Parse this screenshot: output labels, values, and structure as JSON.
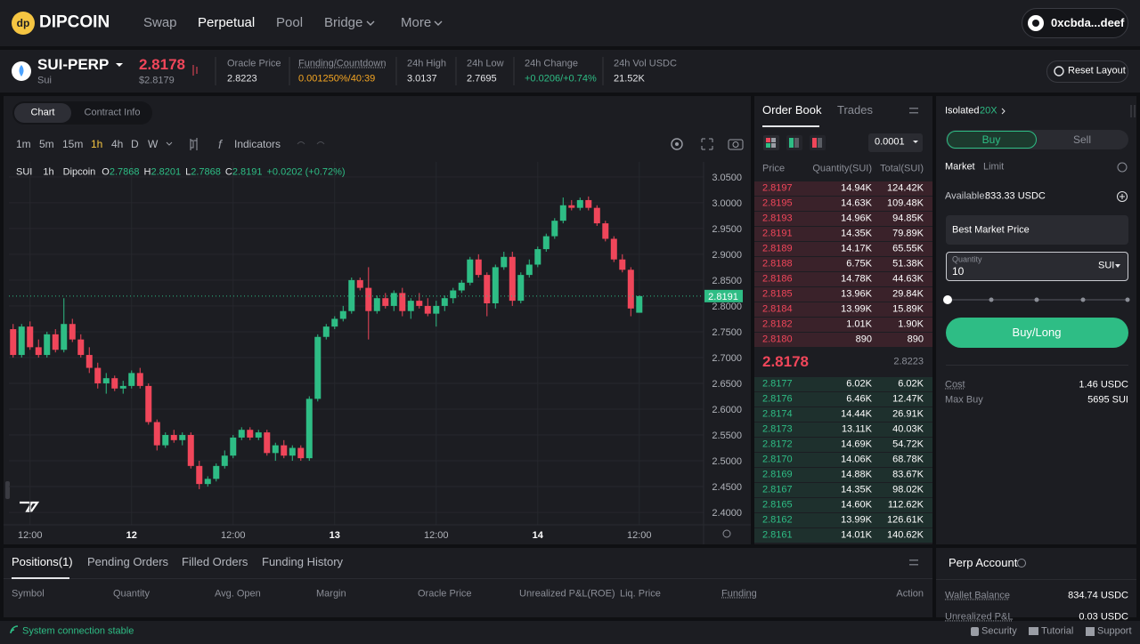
{
  "nav": {
    "logo": "DIPCOIN",
    "links": [
      "Swap",
      "Perpetual",
      "Pool",
      "Bridge",
      "More"
    ],
    "wallet": "0xcbda...deef"
  },
  "ticker": {
    "symbol": "SUI-PERP",
    "name": "Sui",
    "price": "2.8178",
    "price_usd": "$2.8179",
    "stats": [
      {
        "label": "Oracle Price",
        "value": "2.8223"
      },
      {
        "label": "Funding/Countdown",
        "value": "0.001250%/40:39"
      },
      {
        "label": "24h High",
        "value": "3.0137"
      },
      {
        "label": "24h Low",
        "value": "2.7695"
      },
      {
        "label": "24h Change",
        "value": "+0.0206/+0.74%"
      },
      {
        "label": "24h Vol USDC",
        "value": "21.52K"
      }
    ],
    "reset": "Reset Layout"
  },
  "chart_panel": {
    "tabs": [
      "Chart",
      "Contract Info"
    ],
    "intervals": [
      "1m",
      "5m",
      "15m",
      "1h",
      "4h",
      "D",
      "W"
    ],
    "indicators": "Indicators",
    "legend": {
      "interval": "1h",
      "source": "Dipcoin",
      "ohlc": [
        {
          "key": "O",
          "value": "2.7868"
        },
        {
          "key": "H",
          "value": "2.8201"
        },
        {
          "key": "L",
          "value": "2.7868"
        },
        {
          "key": "C",
          "value": "2.8191"
        }
      ],
      "change": "+0.0202 (+0.72%)"
    }
  },
  "chart_data": {
    "type": "candlestick",
    "up_color": "#2ebd85",
    "down_color": "#f0465a",
    "grid": true,
    "x": [
      10,
      11,
      12,
      13,
      14,
      15,
      16,
      17,
      18,
      19,
      20,
      21,
      22,
      23,
      24,
      25,
      26,
      27,
      28,
      29,
      30,
      31,
      32,
      33,
      34,
      35,
      36,
      37,
      38,
      39,
      40,
      41,
      42,
      43,
      44,
      45,
      46,
      47,
      48,
      49,
      50,
      51,
      52,
      53,
      54,
      55,
      56,
      57,
      58,
      59,
      60,
      61,
      62,
      63,
      64,
      65,
      66,
      67,
      68,
      69,
      70,
      71,
      72,
      73,
      74,
      75,
      76,
      77,
      78,
      79,
      80,
      81,
      82,
      83,
      84
    ],
    "series": [
      {
        "name": "SUI",
        "open": [
          2.755,
          2.705,
          2.76,
          2.72,
          2.705,
          2.745,
          2.715,
          2.765,
          2.735,
          2.705,
          2.68,
          2.65,
          2.66,
          2.64,
          2.645,
          2.67,
          2.645,
          2.575,
          2.53,
          2.55,
          2.54,
          2.55,
          2.49,
          2.455,
          2.465,
          2.49,
          2.51,
          2.545,
          2.56,
          2.545,
          2.555,
          2.515,
          2.53,
          2.51,
          2.525,
          2.505,
          2.62,
          2.74,
          2.76,
          2.775,
          2.79,
          2.85,
          2.835,
          2.79,
          2.815,
          2.8,
          2.825,
          2.79,
          2.81,
          2.8,
          2.785,
          2.8,
          2.815,
          2.83,
          2.845,
          2.89,
          2.86,
          2.805,
          2.875,
          2.895,
          2.81,
          2.86,
          2.88,
          2.91,
          2.935,
          2.965,
          2.995,
          2.99,
          3.005,
          2.99,
          2.96,
          2.93,
          2.89,
          2.87,
          2.7868
        ],
        "high": [
          2.765,
          2.765,
          2.77,
          2.735,
          2.75,
          2.755,
          2.815,
          2.775,
          2.745,
          2.72,
          2.69,
          2.67,
          2.665,
          2.655,
          2.675,
          2.68,
          2.65,
          2.58,
          2.555,
          2.56,
          2.555,
          2.555,
          2.5,
          2.47,
          2.495,
          2.52,
          2.55,
          2.565,
          2.565,
          2.56,
          2.56,
          2.535,
          2.54,
          2.53,
          2.53,
          2.625,
          2.745,
          2.765,
          2.78,
          2.8,
          2.855,
          2.855,
          2.875,
          2.82,
          2.825,
          2.83,
          2.835,
          2.815,
          2.825,
          2.815,
          2.81,
          2.82,
          2.835,
          2.85,
          2.895,
          2.9,
          2.865,
          2.88,
          2.905,
          2.905,
          2.865,
          2.89,
          2.915,
          2.94,
          2.97,
          3.01,
          3.005,
          3.01,
          3.012,
          2.995,
          2.965,
          2.935,
          2.9,
          2.875,
          2.8201
        ],
        "low": [
          2.7,
          2.7,
          2.715,
          2.7,
          2.7,
          2.71,
          2.71,
          2.73,
          2.7,
          2.67,
          2.64,
          2.63,
          2.635,
          2.63,
          2.64,
          2.64,
          2.57,
          2.52,
          2.525,
          2.535,
          2.53,
          2.485,
          2.445,
          2.45,
          2.46,
          2.485,
          2.505,
          2.54,
          2.54,
          2.54,
          2.51,
          2.5,
          2.505,
          2.5,
          2.5,
          2.5,
          2.615,
          2.735,
          2.755,
          2.77,
          2.785,
          2.83,
          2.735,
          2.785,
          2.795,
          2.79,
          2.78,
          2.775,
          2.795,
          2.78,
          2.76,
          2.79,
          2.805,
          2.825,
          2.84,
          2.855,
          2.78,
          2.795,
          2.87,
          2.8,
          2.805,
          2.855,
          2.875,
          2.905,
          2.93,
          2.96,
          2.985,
          2.985,
          2.985,
          2.955,
          2.925,
          2.885,
          2.865,
          2.78,
          2.7868
        ],
        "close": [
          2.705,
          2.76,
          2.72,
          2.705,
          2.745,
          2.715,
          2.765,
          2.735,
          2.705,
          2.68,
          2.65,
          2.66,
          2.64,
          2.645,
          2.67,
          2.645,
          2.575,
          2.53,
          2.55,
          2.54,
          2.55,
          2.49,
          2.455,
          2.465,
          2.49,
          2.51,
          2.545,
          2.56,
          2.545,
          2.555,
          2.515,
          2.53,
          2.51,
          2.525,
          2.505,
          2.62,
          2.74,
          2.76,
          2.775,
          2.79,
          2.85,
          2.835,
          2.79,
          2.815,
          2.8,
          2.825,
          2.79,
          2.81,
          2.8,
          2.785,
          2.8,
          2.815,
          2.83,
          2.845,
          2.89,
          2.86,
          2.805,
          2.875,
          2.895,
          2.81,
          2.86,
          2.88,
          2.91,
          2.935,
          2.965,
          2.995,
          2.99,
          3.005,
          2.99,
          2.96,
          2.93,
          2.89,
          2.87,
          2.795,
          2.8191
        ]
      }
    ],
    "xlim": [
      9.5,
      91.6
    ],
    "xticks": [
      {
        "value": 12,
        "label": "12:00"
      },
      {
        "value": 24,
        "label": "12"
      },
      {
        "value": 36,
        "label": "12:00"
      },
      {
        "value": 48,
        "label": "13"
      },
      {
        "value": 60,
        "label": "12:00"
      },
      {
        "value": 72,
        "label": "14"
      },
      {
        "value": 84,
        "label": "12:00"
      }
    ],
    "ylim": [
      2.376,
      3.079
    ],
    "yticks": [
      {
        "value": 2.4,
        "label": "2.4000"
      },
      {
        "value": 2.45,
        "label": "2.4500"
      },
      {
        "value": 2.5,
        "label": "2.5000"
      },
      {
        "value": 2.55,
        "label": "2.5500"
      },
      {
        "value": 2.6,
        "label": "2.6000"
      },
      {
        "value": 2.65,
        "label": "2.6500"
      },
      {
        "value": 2.7,
        "label": "2.7000"
      },
      {
        "value": 2.75,
        "label": "2.7500"
      },
      {
        "value": 2.8,
        "label": "2.8000"
      },
      {
        "value": 2.85,
        "label": "2.8500"
      },
      {
        "value": 2.9,
        "label": "2.9000"
      },
      {
        "value": 2.95,
        "label": "2.9500"
      },
      {
        "value": 3.0,
        "label": "3.0000"
      },
      {
        "value": 3.05,
        "label": "3.0500"
      }
    ],
    "last_price": 2.8191
  },
  "order_book": {
    "tabs": [
      "Order Book",
      "Trades"
    ],
    "step": "0.0001",
    "headers": [
      "Price",
      "Quantity(SUI)",
      "Total(SUI)"
    ],
    "asks": [
      [
        "2.8197",
        "14.94K",
        "124.42K"
      ],
      [
        "2.8195",
        "14.63K",
        "109.48K"
      ],
      [
        "2.8193",
        "14.96K",
        "94.85K"
      ],
      [
        "2.8191",
        "14.35K",
        "79.89K"
      ],
      [
        "2.8189",
        "14.17K",
        "65.55K"
      ],
      [
        "2.8188",
        "6.75K",
        "51.38K"
      ],
      [
        "2.8186",
        "14.78K",
        "44.63K"
      ],
      [
        "2.8185",
        "13.96K",
        "29.84K"
      ],
      [
        "2.8184",
        "13.99K",
        "15.89K"
      ],
      [
        "2.8182",
        "1.01K",
        "1.90K"
      ],
      [
        "2.8180",
        "890",
        "890"
      ]
    ],
    "mid_price": "2.8178",
    "mid_oracle": "2.8223",
    "bids": [
      [
        "2.8177",
        "6.02K",
        "6.02K"
      ],
      [
        "2.8176",
        "6.46K",
        "12.47K"
      ],
      [
        "2.8174",
        "14.44K",
        "26.91K"
      ],
      [
        "2.8173",
        "13.11K",
        "40.03K"
      ],
      [
        "2.8172",
        "14.69K",
        "54.72K"
      ],
      [
        "2.8170",
        "14.06K",
        "68.78K"
      ],
      [
        "2.8169",
        "14.88K",
        "83.67K"
      ],
      [
        "2.8167",
        "14.35K",
        "98.02K"
      ],
      [
        "2.8165",
        "14.60K",
        "112.62K"
      ],
      [
        "2.8162",
        "13.99K",
        "126.61K"
      ],
      [
        "2.8161",
        "14.01K",
        "140.62K"
      ]
    ]
  },
  "trade": {
    "margin_mode": "Isolated",
    "leverage": "20X",
    "sides": [
      "Buy",
      "Sell"
    ],
    "order_types": [
      "Market",
      "Limit"
    ],
    "available_label": "Available:",
    "available": "833.33 USDC",
    "price_field": "Best Market Price",
    "qty_label": "Quantity",
    "qty_value": "10",
    "qty_unit": "SUI",
    "submit": "Buy/Long",
    "cost_label": "Cost",
    "cost": "1.46 USDC",
    "max_label": "Max Buy",
    "max": "5695 SUI"
  },
  "positions": {
    "tabs": [
      "Positions(1)",
      "Pending Orders",
      "Filled Orders",
      "Funding History"
    ],
    "columns": [
      "Symbol",
      "Quantity",
      "Avg. Open",
      "Margin",
      "Oracle Price",
      "Unrealized P&L(ROE)",
      "Liq. Price",
      "Funding",
      "Action"
    ]
  },
  "account": {
    "title": "Perp Account",
    "rows": [
      {
        "label": "Wallet Balance",
        "value": "834.74 USDC"
      },
      {
        "label": "Unrealized P&L",
        "value": "0.03 USDC"
      }
    ]
  },
  "footer": {
    "status": "System connection stable",
    "links": [
      "Security",
      "Tutorial",
      "Support"
    ]
  }
}
